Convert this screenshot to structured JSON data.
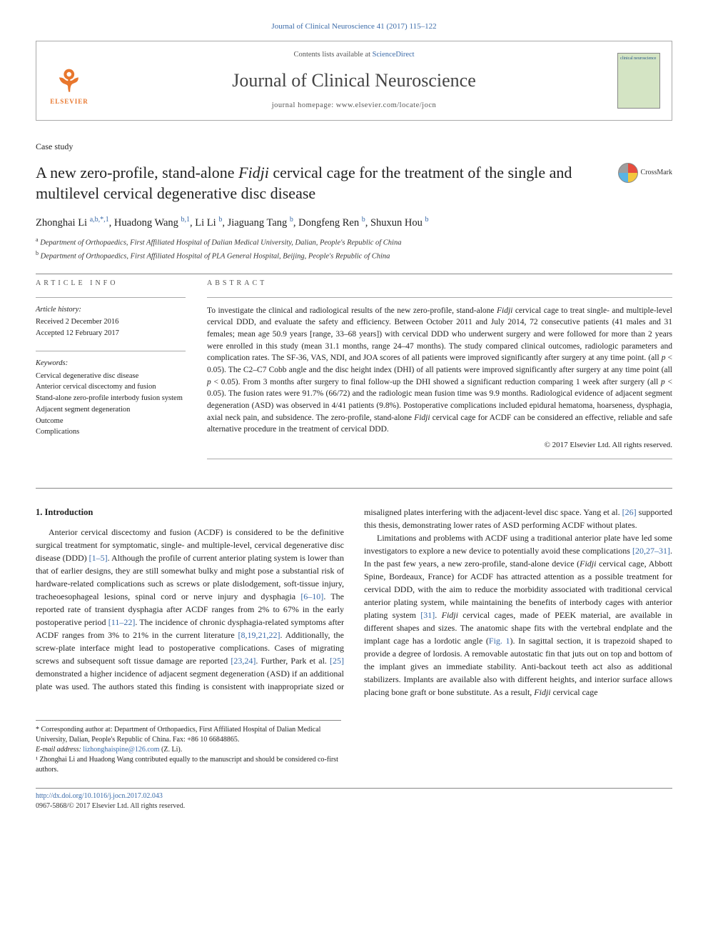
{
  "citation": "Journal of Clinical Neuroscience 41 (2017) 115–122",
  "header": {
    "elsevier": "ELSEVIER",
    "contents_prefix": "Contents lists available at ",
    "contents_link": "ScienceDirect",
    "journal_name": "Journal of Clinical Neuroscience",
    "homepage_prefix": "journal homepage: ",
    "homepage": "www.elsevier.com/locate/jocn",
    "cover_text_top": "clinical neuroscience"
  },
  "article_type": "Case study",
  "title_part1": "A new zero-profile, stand-alone ",
  "title_italic": "Fidji",
  "title_part2": " cervical cage for the treatment of the single and multilevel cervical degenerative disc disease",
  "crossmark": "CrossMark",
  "authors_html": "Zhonghai Li|a,b,*,1|, Huadong Wang|b,1|, Li Li|b|, Jiaguang Tang|b|, Dongfeng Ren|b|, Shuxun Hou|b|",
  "authors": [
    {
      "name": "Zhonghai Li",
      "sup": "a,b,*,1"
    },
    {
      "name": "Huadong Wang",
      "sup": "b,1"
    },
    {
      "name": "Li Li",
      "sup": "b"
    },
    {
      "name": "Jiaguang Tang",
      "sup": "b"
    },
    {
      "name": "Dongfeng Ren",
      "sup": "b"
    },
    {
      "name": "Shuxun Hou",
      "sup": "b"
    }
  ],
  "affiliations": [
    {
      "sup": "a",
      "text": "Department of Orthopaedics, First Affiliated Hospital of Dalian Medical University, Dalian, People's Republic of China"
    },
    {
      "sup": "b",
      "text": "Department of Orthopaedics, First Affiliated Hospital of PLA General Hospital, Beijing, People's Republic of China"
    }
  ],
  "info": {
    "label": "ARTICLE INFO",
    "history_label": "Article history:",
    "received": "Received 2 December 2016",
    "accepted": "Accepted 12 February 2017",
    "keywords_label": "Keywords:",
    "keywords": [
      "Cervical degenerative disc disease",
      "Anterior cervical discectomy and fusion",
      "Stand-alone zero-profile interbody fusion system",
      "Adjacent segment degeneration",
      "Outcome",
      "Complications"
    ]
  },
  "abstract": {
    "label": "ABSTRACT",
    "text_p1": "To investigate the clinical and radiological results of the new zero-profile, stand-alone ",
    "text_i1": "Fidji",
    "text_p2": " cervical cage to treat single- and multiple-level cervical DDD, and evaluate the safety and efficiency. Between October 2011 and July 2014, 72 consecutive patients (41 males and 31 females; mean age 50.9 years [range, 33–68 years]) with cervical DDD who underwent surgery and were followed for more than 2 years were enrolled in this study (mean 31.1 months, range 24–47 months). The study compared clinical outcomes, radiologic parameters and complication rates. The SF-36, VAS, NDI, and JOA scores of all patients were improved significantly after surgery at any time point. (all ",
    "text_i2": "p",
    "text_p3": " < 0.05). The C2–C7 Cobb angle and the disc height index (DHI) of all patients were improved significantly after surgery at any time point (all ",
    "text_i3": "p",
    "text_p4": " < 0.05). From 3 months after surgery to final follow-up the DHI showed a significant reduction comparing 1 week after surgery (all ",
    "text_i4": "p",
    "text_p5": " < 0.05). The fusion rates were 91.7% (66/72) and the radiologic mean fusion time was 9.9 months. Radiological evidence of adjacent segment degeneration (ASD) was observed in 4/41 patients (9.8%). Postoperative complications included epidural hematoma, hoarseness, dysphagia, axial neck pain, and subsidence. The zero-profile, stand-alone ",
    "text_i5": "Fidji",
    "text_p6": " cervical cage for ACDF can be considered an effective, reliable and safe alternative procedure in the treatment of cervical DDD.",
    "copyright": "© 2017 Elsevier Ltd. All rights reserved."
  },
  "body": {
    "heading": "1. Introduction",
    "p1_a": "Anterior cervical discectomy and fusion (ACDF) is considered to be the definitive surgical treatment for symptomatic, single- and multiple-level, cervical degenerative disc disease (DDD) ",
    "p1_r1": "[1–5]",
    "p1_b": ". Although the profile of current anterior plating system is lower than that of earlier designs, they are still somewhat bulky and might pose a substantial risk of hardware-related complications such as screws or plate dislodgement, soft-tissue injury, tracheoesophageal lesions, spinal cord or nerve injury and dysphagia ",
    "p1_r2": "[6–10]",
    "p1_c": ". The reported rate of transient dysphagia after ACDF ranges from 2% to 67% in the early postoperative period ",
    "p1_r3": "[11–22]",
    "p1_d": ". The incidence of chronic dysphagia-related symptoms after ACDF ranges from 3% to 21% in the current literature ",
    "p1_r4": "[8,19,21,22]",
    "p1_e": ". Additionally, the screw-plate interface might lead to postoperative complications. Cases of migrating screws and subsequent soft tissue dam",
    "p1_f": "age are reported ",
    "p1_r5": "[23,24]",
    "p1_g": ". Further, Park et al. ",
    "p1_r6": "[25]",
    "p1_h": " demonstrated a higher incidence of adjacent segment degeneration (ASD) if an additional plate was used. The authors stated this finding is consistent with inappropriate sized or misaligned plates interfering with the adjacent-level disc space. Yang et al. ",
    "p1_r7": "[26]",
    "p1_i": " supported this thesis, demonstrating lower rates of ASD performing ACDF without plates.",
    "p2_a": "Limitations and problems with ACDF using a traditional anterior plate have led some investigators to explore a new device to potentially avoid these complications ",
    "p2_r1": "[20,27–31]",
    "p2_b": ". In the past few years, a new zero-profile, stand-alone device (",
    "p2_i1": "Fidji",
    "p2_c": " cervical cage, Abbott Spine, Bordeaux, France) for ACDF has attracted attention as a possible treatment for cervical DDD, with the aim to reduce the morbidity associated with traditional cervical anterior plating system, while maintaining the benefits of interbody cages with anterior plating system ",
    "p2_r2": "[31]",
    "p2_d": ". ",
    "p2_i2": "Fidji",
    "p2_e": " cervical cages, made of PEEK material, are available in different shapes and sizes. The anatomic shape fits with the vertebral endplate and the implant cage has a lordotic angle (",
    "p2_r3": "Fig. 1",
    "p2_f": "). In sagittal section, it is trapezoid shaped to provide a degree of lordosis. A removable autostatic fin that juts out on top and bottom of the implant gives an immediate stability. Anti-backout teeth act also as additional stabilizers. Implants are available also with different heights, and interior surface allows placing bone graft or bone substitute. As a result, ",
    "p2_i3": "Fidji",
    "p2_g": " cervical cage"
  },
  "footnotes": {
    "corr": "* Corresponding author at: Department of Orthopaedics, First Affiliated Hospital of Dalian Medical University, Dalian, People's Republic of China. Fax: +86 10 66848865.",
    "email_label": "E-mail address: ",
    "email": "lizhonghaispine@126.com",
    "email_suffix": " (Z. Li).",
    "note1": "¹ Zhonghai Li and Huadong Wang contributed equally to the manuscript and should be considered co-first authors."
  },
  "footer": {
    "doi": "http://dx.doi.org/10.1016/j.jocn.2017.02.043",
    "issn": "0967-5868/© 2017 Elsevier Ltd. All rights reserved."
  },
  "colors": {
    "link": "#3a6aa8",
    "orange": "#e8772e",
    "text": "#222222",
    "border": "#888888"
  }
}
